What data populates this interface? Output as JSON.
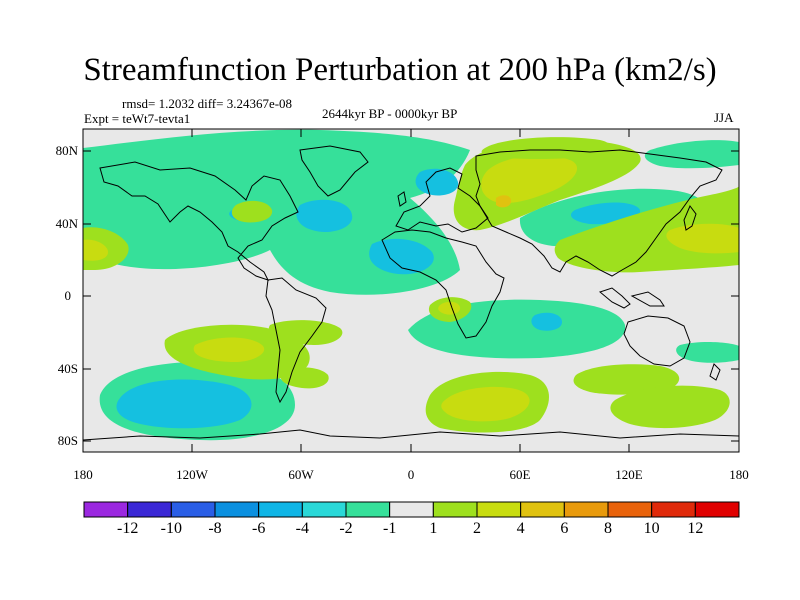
{
  "title": "Streamfunction Perturbation at 200 hPa (km2/s)",
  "stats": "rmsd= 1.2032 diff= 3.24367e-08",
  "experiment": "Expt = teWt7-tevta1",
  "period": "2644kyr BP - 0000kyr BP",
  "season": "JJA",
  "lat_labels": [
    "80N",
    "40N",
    "0",
    "40S",
    "80S"
  ],
  "lon_labels": [
    "180",
    "120W",
    "60W",
    "0",
    "60E",
    "120E",
    "180"
  ],
  "colorbar": {
    "labels": [
      "-12",
      "-10",
      "-8",
      "-6",
      "-4",
      "-2",
      "-1",
      "1",
      "2",
      "4",
      "6",
      "8",
      "10",
      "12"
    ],
    "colors": [
      "#9b28e0",
      "#3b28d6",
      "#2a5ee6",
      "#0b90e0",
      "#0fb5e6",
      "#2ad8d8",
      "#36e09a",
      "#e8e8e8",
      "#9ee01e",
      "#c8dc10",
      "#e0c210",
      "#e89a0c",
      "#e8620a",
      "#e02a0a",
      "#e00000"
    ]
  },
  "palette": {
    "neutral": "#e8e8e8",
    "green_neg": "#36e09a",
    "cyan_neg": "#2ad8d8",
    "blue_neg": "#15c0e0",
    "green_pos": "#9ee01e",
    "yellow_pos": "#c8dc10",
    "orange_pos": "#e0c210"
  }
}
